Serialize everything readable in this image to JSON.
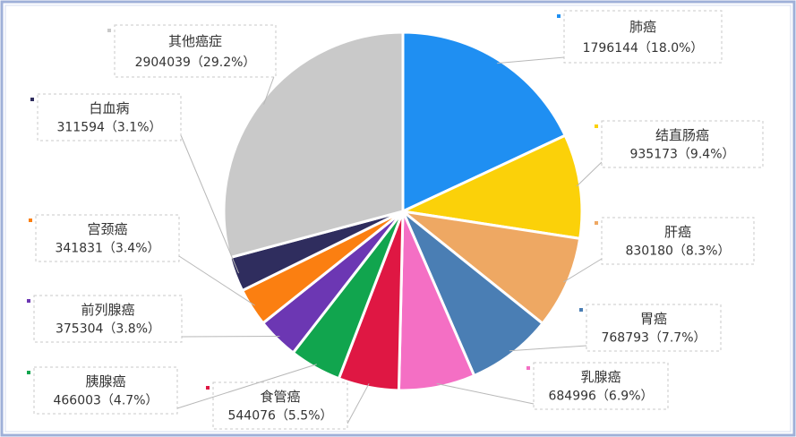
{
  "chart_data": {
    "type": "pie",
    "categories": [
      "肺癌",
      "结直肠癌",
      "肝癌",
      "胃癌",
      "乳腺癌",
      "食管癌",
      "胰腺癌",
      "前列腺癌",
      "宫颈癌",
      "白血病",
      "其他癌症"
    ],
    "values": [
      1796144,
      935173,
      830180,
      768793,
      684996,
      544076,
      466003,
      375304,
      341831,
      311594,
      2904039
    ],
    "value_labels": [
      "1796144（18.0%）",
      "935173（9.4%）",
      "830180（8.3%）",
      "768793（7.7%）",
      "684996（6.9%）",
      "544076（5.5%）",
      "466003（4.7%）",
      "375304（3.8%）",
      "341831（3.4%）",
      "311594（3.1%）",
      "2904039（29.2%）"
    ],
    "colors": [
      "#1f8ff2",
      "#fbd109",
      "#eea863",
      "#4a7eb4",
      "#f46fc4",
      "#df1743",
      "#11a54e",
      "#6c37b3",
      "#fb7f11",
      "#2f2d5e",
      "#c9c9c9"
    ]
  }
}
